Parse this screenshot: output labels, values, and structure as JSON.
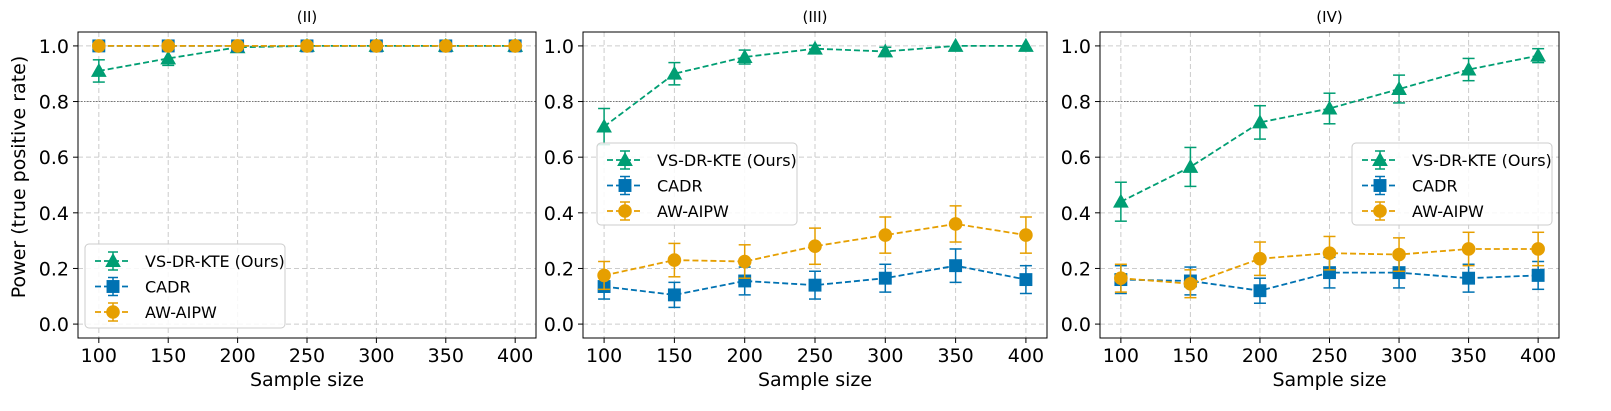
{
  "figure": {
    "ylabel": "Power (true positive rate)",
    "xlabel": "Sample size",
    "reference_line": 0.8
  },
  "series_styles": [
    {
      "name": "VS-DR-KTE (Ours)",
      "color": "#009E73",
      "marker": "triangle"
    },
    {
      "name": "CADR",
      "color": "#0072B2",
      "marker": "square"
    },
    {
      "name": "AW-AIPW",
      "color": "#E69F00",
      "marker": "circle"
    }
  ],
  "chart_data": [
    {
      "type": "line",
      "title": "(II)",
      "xlabel": "Sample size",
      "ylabel": "Power (true positive rate)",
      "x": [
        100,
        150,
        200,
        250,
        300,
        350,
        400
      ],
      "xlim": [
        85,
        415
      ],
      "ylim": [
        -0.05,
        1.05
      ],
      "xticks": [
        100,
        150,
        200,
        250,
        300,
        350,
        400
      ],
      "yticks": [
        0.0,
        0.2,
        0.4,
        0.6,
        0.8,
        1.0
      ],
      "grid": true,
      "legend": "lower-left",
      "series": [
        {
          "name": "VS-DR-KTE (Ours)",
          "values": [
            0.91,
            0.955,
            0.995,
            1.0,
            1.0,
            1.0,
            1.0
          ],
          "errors": [
            0.04,
            0.025,
            0.01,
            0.0,
            0.0,
            0.0,
            0.0
          ]
        },
        {
          "name": "CADR",
          "values": [
            1.0,
            1.0,
            1.0,
            1.0,
            1.0,
            1.0,
            1.0
          ],
          "errors": [
            0,
            0,
            0,
            0,
            0,
            0,
            0
          ]
        },
        {
          "name": "AW-AIPW",
          "values": [
            1.0,
            1.0,
            1.0,
            1.0,
            1.0,
            1.0,
            1.0
          ],
          "errors": [
            0,
            0,
            0,
            0,
            0,
            0,
            0
          ]
        }
      ]
    },
    {
      "type": "line",
      "title": "(III)",
      "xlabel": "Sample size",
      "ylabel": "",
      "x": [
        100,
        150,
        200,
        250,
        300,
        350,
        400
      ],
      "xlim": [
        85,
        415
      ],
      "ylim": [
        -0.05,
        1.05
      ],
      "xticks": [
        100,
        150,
        200,
        250,
        300,
        350,
        400
      ],
      "yticks": [
        0.0,
        0.2,
        0.4,
        0.6,
        0.8,
        1.0
      ],
      "grid": true,
      "legend": "center-left",
      "series": [
        {
          "name": "VS-DR-KTE (Ours)",
          "values": [
            0.71,
            0.9,
            0.96,
            0.99,
            0.98,
            1.0,
            1.0
          ],
          "errors": [
            0.065,
            0.04,
            0.025,
            0.012,
            0.015,
            0.0,
            0.0
          ]
        },
        {
          "name": "CADR",
          "values": [
            0.135,
            0.105,
            0.155,
            0.14,
            0.165,
            0.21,
            0.16
          ],
          "errors": [
            0.045,
            0.045,
            0.05,
            0.05,
            0.05,
            0.06,
            0.05
          ]
        },
        {
          "name": "AW-AIPW",
          "values": [
            0.175,
            0.23,
            0.225,
            0.28,
            0.32,
            0.36,
            0.32
          ],
          "errors": [
            0.05,
            0.06,
            0.06,
            0.065,
            0.065,
            0.065,
            0.065
          ]
        }
      ]
    },
    {
      "type": "line",
      "title": "(IV)",
      "xlabel": "Sample size",
      "ylabel": "",
      "x": [
        100,
        150,
        200,
        250,
        300,
        350,
        400
      ],
      "xlim": [
        85,
        415
      ],
      "ylim": [
        -0.05,
        1.05
      ],
      "xticks": [
        100,
        150,
        200,
        250,
        300,
        350,
        400
      ],
      "yticks": [
        0.0,
        0.2,
        0.4,
        0.6,
        0.8,
        1.0
      ],
      "grid": true,
      "legend": "center-right",
      "series": [
        {
          "name": "VS-DR-KTE (Ours)",
          "values": [
            0.44,
            0.565,
            0.725,
            0.775,
            0.845,
            0.915,
            0.965
          ],
          "errors": [
            0.07,
            0.07,
            0.06,
            0.055,
            0.05,
            0.04,
            0.025
          ]
        },
        {
          "name": "CADR",
          "values": [
            0.16,
            0.155,
            0.12,
            0.185,
            0.185,
            0.165,
            0.175
          ],
          "errors": [
            0.05,
            0.05,
            0.045,
            0.055,
            0.055,
            0.05,
            0.05
          ]
        },
        {
          "name": "AW-AIPW",
          "values": [
            0.165,
            0.145,
            0.235,
            0.255,
            0.25,
            0.27,
            0.27
          ],
          "errors": [
            0.05,
            0.05,
            0.06,
            0.06,
            0.06,
            0.06,
            0.06
          ]
        }
      ]
    }
  ]
}
